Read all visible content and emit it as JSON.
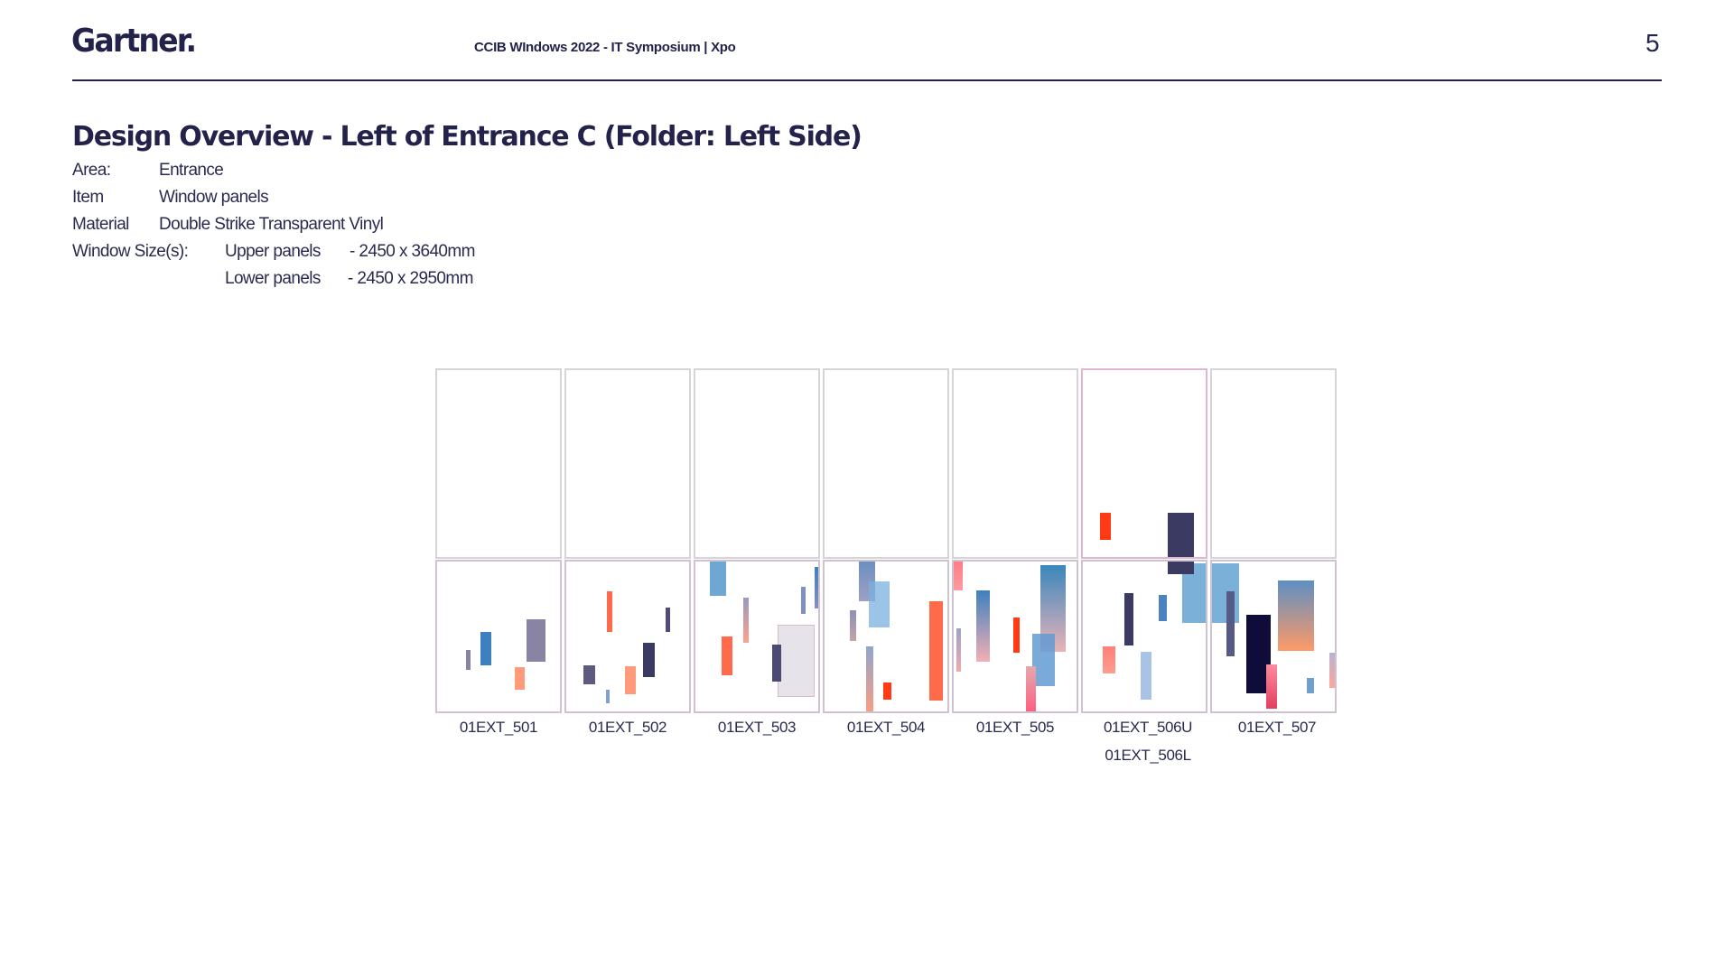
{
  "header": {
    "logo": "Gartner.",
    "document_title": "CCIB WIndows 2022 - IT Symposium | Xpo",
    "page_number": "5"
  },
  "main": {
    "heading": "Design Overview - Left of Entrance C (Folder: Left Side)",
    "specs": {
      "area_label": "Area:",
      "area_value": "Entrance",
      "item_label": "Item",
      "item_value": "Window panels",
      "material_label": "Material",
      "material_value": "Double Strike Transparent Vinyl",
      "window_sizes_label": "Window Size(s):",
      "upper_label": "Upper panels",
      "upper_value": "- 2450  x 3640mm",
      "lower_label": "Lower panels",
      "lower_value": "- 2450 x 2950mm"
    },
    "panels": [
      {
        "label": "01EXT_501"
      },
      {
        "label": "01EXT_502"
      },
      {
        "label": "01EXT_503"
      },
      {
        "label": "01EXT_504"
      },
      {
        "label": "01EXT_505"
      },
      {
        "label": "01EXT_506U",
        "label2": "01EXT_506L"
      },
      {
        "label": "01EXT_507"
      }
    ]
  },
  "colors": {
    "brand_navy": "#23224b",
    "panel_border": "#d6d4d8",
    "accent_pink_border": "#e2b5d0",
    "sky_blue": "#6fa7d4",
    "steel_blue": "#3d7fbf",
    "coral": "#ff6b4a",
    "red": "#ff3a14",
    "salmon": "#ff9a7a",
    "dark_navy": "#3b3a62",
    "midnight": "#0f0c3a",
    "lilac_grey": "#8a84a4"
  }
}
